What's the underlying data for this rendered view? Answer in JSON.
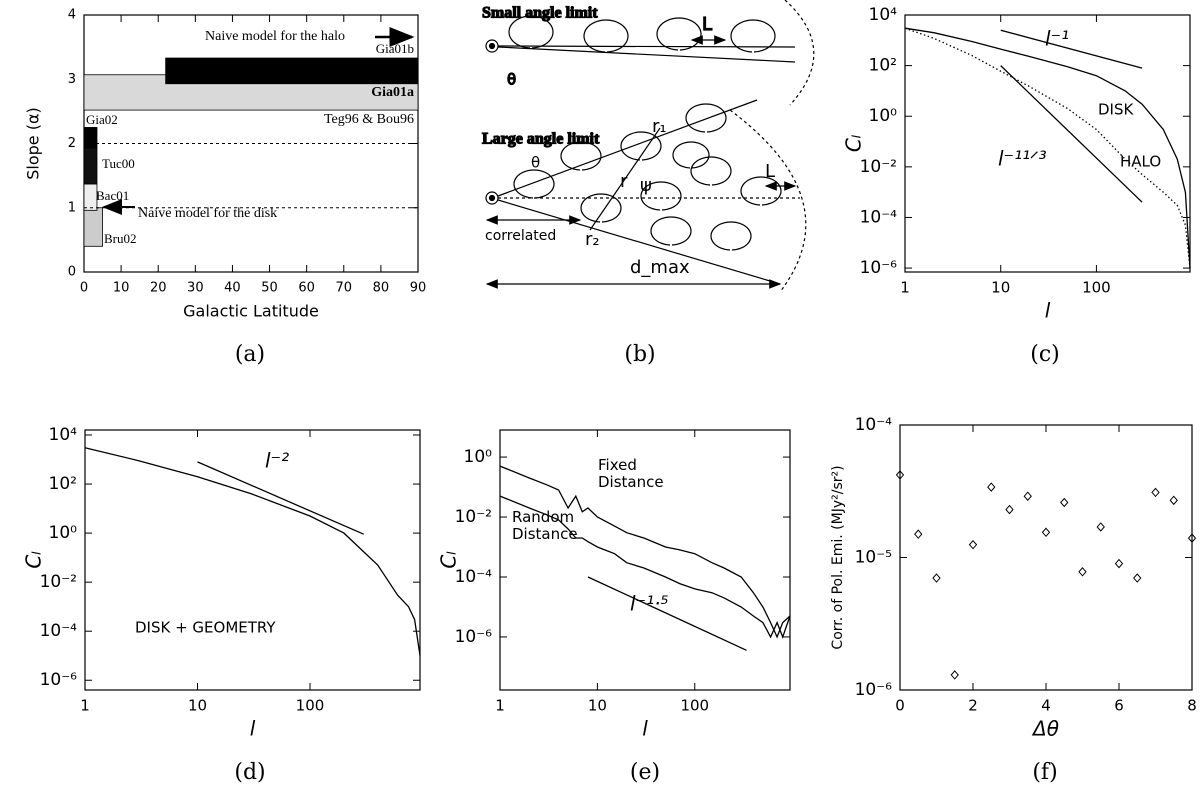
{
  "chart_data": [
    {
      "type": "range",
      "caption": "(a)",
      "xlabel": "Galactic Latitude",
      "ylabel": "Slope (α)",
      "xlim": [
        0,
        90
      ],
      "ylim": [
        0,
        4
      ],
      "xticks": [
        0,
        10,
        20,
        30,
        40,
        50,
        60,
        70,
        80,
        90
      ],
      "yticks": [
        0,
        1,
        2,
        3,
        4
      ],
      "hlines": [
        1,
        2
      ],
      "ranges": [
        {
          "name": "Gia01a",
          "x": [
            0,
            90
          ],
          "y": [
            2.52,
            3.07
          ],
          "color": "#d9d9d9"
        },
        {
          "name": "Gia01b",
          "x": [
            22,
            90
          ],
          "y": [
            2.93,
            3.33
          ],
          "color": "#000000"
        },
        {
          "name": "Bru02",
          "x": [
            0,
            5
          ],
          "y": [
            0.4,
            1.0
          ],
          "color": "#cccccc"
        },
        {
          "name": "Bac01",
          "x": [
            0,
            3.5
          ],
          "y": [
            0.96,
            1.37
          ],
          "color": "#eeeeee"
        },
        {
          "name": "Tuc00",
          "x": [
            0,
            3.5
          ],
          "y": [
            1.37,
            1.93
          ],
          "color": "#111111"
        },
        {
          "name": "Gia02",
          "x": [
            0,
            3.5
          ],
          "y": [
            1.93,
            2.25
          ],
          "color": "#000000"
        }
      ],
      "annotations": [
        "Naive model for the halo",
        "Naive model for the disk",
        "Teg96 & Bou96"
      ]
    },
    {
      "type": "line",
      "caption": "(c)",
      "xlabel": "l",
      "ylabel": "Cₗ",
      "xlog": true,
      "ylog": true,
      "xlim": [
        1,
        950
      ],
      "ylim": [
        7e-07,
        10000
      ],
      "xticks": [
        1,
        10,
        100
      ],
      "yticks": [
        {
          "value": 10000,
          "label": "10⁴"
        },
        {
          "value": 100,
          "label": "10²"
        },
        {
          "value": 1,
          "label": "10⁰"
        },
        {
          "value": 0.01,
          "label": "10⁻²"
        },
        {
          "value": 0.0001,
          "label": "10⁻⁴"
        },
        {
          "value": 1e-06,
          "label": "10⁻⁶"
        }
      ],
      "series": [
        {
          "name": "DISK",
          "color": "#000000",
          "dash": "solid",
          "x": [
            1,
            2,
            5,
            10,
            20,
            50,
            100,
            200,
            300,
            500,
            700,
            850,
            950
          ],
          "values": [
            3000,
            2000,
            900,
            450,
            230,
            90,
            40,
            10,
            3,
            0.3,
            0.02,
            0.001,
            1e-06
          ]
        },
        {
          "name": "HALO",
          "color": "#000000",
          "dash": "dotted",
          "x": [
            1,
            2,
            5,
            10,
            20,
            50,
            100,
            200,
            300,
            500,
            700,
            850,
            950
          ],
          "values": [
            3000,
            1200,
            250,
            60,
            15,
            2,
            0.3,
            0.02,
            0.005,
            0.001,
            0.0003,
            5e-05,
            1e-06
          ]
        },
        {
          "name": "l⁻¹",
          "color": "#000000",
          "dash": "solid",
          "x": [
            10,
            300
          ],
          "values": [
            2500,
            80
          ]
        },
        {
          "name": "l⁻¹¹ᐟ³",
          "color": "#000000",
          "dash": "solid",
          "x": [
            10,
            300
          ],
          "values": [
            100,
            0.0004
          ]
        }
      ]
    },
    {
      "type": "line",
      "caption": "(d)",
      "xlabel": "l",
      "ylabel": "Cₗ",
      "xlog": true,
      "ylog": true,
      "xlim": [
        1,
        950
      ],
      "ylim": [
        4e-07,
        16000
      ],
      "xticks": [
        1,
        10,
        100
      ],
      "yticks": [
        {
          "value": 10000,
          "label": "10⁴"
        },
        {
          "value": 100,
          "label": "10²"
        },
        {
          "value": 1,
          "label": "10⁰"
        },
        {
          "value": 0.01,
          "label": "10⁻²"
        },
        {
          "value": 0.0001,
          "label": "10⁻⁴"
        },
        {
          "value": 1e-06,
          "label": "10⁻⁶"
        }
      ],
      "series": [
        {
          "name": "DISK + GEOMETRY",
          "color": "#000000",
          "dash": "solid",
          "x": [
            1,
            3,
            10,
            30,
            100,
            200,
            400,
            600,
            750,
            850,
            950
          ],
          "values": [
            3000,
            900,
            200,
            40,
            5,
            1,
            0.05,
            0.003,
            0.001,
            0.0003,
            1e-05
          ]
        },
        {
          "name": "l⁻²",
          "color": "#000000",
          "dash": "solid",
          "x": [
            10,
            300
          ],
          "values": [
            800,
            0.9
          ]
        }
      ]
    },
    {
      "type": "line",
      "caption": "(e)",
      "xlabel": "l",
      "ylabel": "Cₗ",
      "xlog": true,
      "ylog": true,
      "xlim": [
        1,
        950
      ],
      "ylim": [
        1.7e-08,
        8
      ],
      "xticks": [
        1,
        10,
        100
      ],
      "yticks": [
        {
          "value": 1,
          "label": "10⁰"
        },
        {
          "value": 0.01,
          "label": "10⁻²"
        },
        {
          "value": 0.0001,
          "label": "10⁻⁴"
        },
        {
          "value": 1e-06,
          "label": "10⁻⁶"
        }
      ],
      "series": [
        {
          "name": "Fixed Distance",
          "color": "#000000",
          "dash": "solid",
          "x": [
            1,
            2,
            3,
            4,
            5,
            6,
            7,
            8,
            10,
            15,
            20,
            30,
            50,
            70,
            100,
            150,
            200,
            300,
            400,
            500,
            600,
            700,
            800,
            950
          ],
          "values": [
            0.5,
            0.2,
            0.12,
            0.08,
            0.02,
            0.05,
            0.015,
            0.02,
            0.01,
            0.005,
            0.003,
            0.002,
            0.001,
            0.0008,
            0.0006,
            0.0003,
            0.0002,
            0.0001,
            3e-05,
            1e-05,
            3e-06,
            1e-06,
            3e-06,
            5e-06
          ]
        },
        {
          "name": "Random Distance",
          "color": "#000000",
          "dash": "solid",
          "x": [
            1,
            2,
            3,
            4,
            5,
            6,
            7,
            8,
            10,
            15,
            20,
            30,
            50,
            70,
            100,
            150,
            200,
            300,
            400,
            500,
            600,
            700,
            800,
            950
          ],
          "values": [
            0.05,
            0.02,
            0.012,
            0.008,
            0.004,
            0.002,
            0.002,
            0.0015,
            0.001,
            0.0006,
            0.0003,
            0.0002,
            0.0001,
            6e-05,
            4e-05,
            3e-05,
            2e-05,
            1e-05,
            5e-06,
            3e-06,
            1e-06,
            3e-06,
            1e-06,
            5e-06
          ]
        },
        {
          "name": "l⁻¹·⁵",
          "color": "#000000",
          "dash": "solid",
          "x": [
            8,
            340
          ],
          "values": [
            0.0001,
            3.6e-07
          ]
        }
      ]
    },
    {
      "type": "scatter",
      "caption": "(f)",
      "xlabel": "Δθ",
      "ylabel": "Corr. of Pol. Emi. (MJy²/sr²)",
      "ylog": true,
      "xlim": [
        0,
        8
      ],
      "ylim": [
        1e-06,
        0.0001
      ],
      "xticks": [
        0,
        2,
        4,
        6,
        8
      ],
      "yticks": [
        {
          "value": 0.0001,
          "label": "10⁻⁴"
        },
        {
          "value": 1e-05,
          "label": "10⁻⁵"
        },
        {
          "value": 1e-06,
          "label": "10⁻⁶"
        }
      ],
      "series": [
        {
          "color": "#000000",
          "x": [
            0,
            0.5,
            1,
            1.5,
            2,
            2.5,
            3,
            3.5,
            4,
            4.5,
            5,
            5.5,
            6,
            6.5,
            7,
            7.5,
            8
          ],
          "values": [
            4.2e-05,
            1.5e-05,
            7e-06,
            1.3e-06,
            1.25e-05,
            3.4e-05,
            2.3e-05,
            2.9e-05,
            1.55e-05,
            2.6e-05,
            7.8e-06,
            1.7e-05,
            9e-06,
            7e-06,
            3.1e-05,
            2.7e-05,
            1.4e-05
          ]
        }
      ]
    }
  ],
  "diagram": {
    "caption": "(b)",
    "small_title": "Small angle limit",
    "large_title": "Large angle limit",
    "labels": {
      "L": "L",
      "theta": "θ",
      "r1": "r₁",
      "r": "r",
      "psi": "ψ",
      "r2": "r₂",
      "correlated": "correlated",
      "dmax": "d_max"
    }
  }
}
